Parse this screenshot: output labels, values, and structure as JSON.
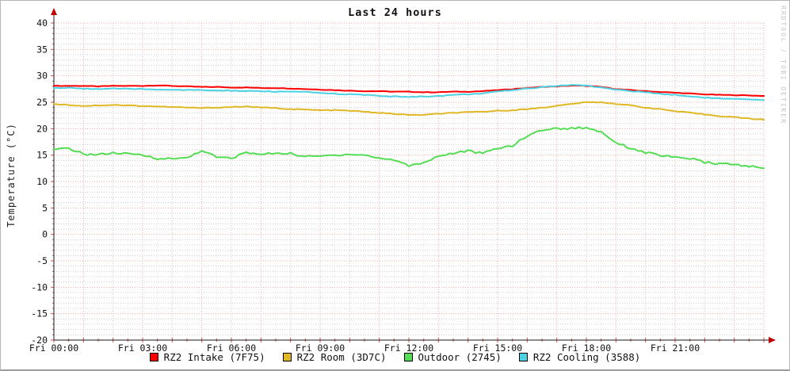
{
  "chart_data": {
    "type": "line",
    "title": "Last 24 hours",
    "ylabel": "Temperature (°C)",
    "watermark": "RRDTOOL / TOBI OETIKER",
    "ylim": [
      -20,
      40
    ],
    "y_major_step": 5,
    "y_minor_step": 1,
    "xlim_hours": [
      0,
      24
    ],
    "x_major_step_hours": 3,
    "x_minor_step_hours": 1,
    "grid": true,
    "legend_position": "bottom",
    "x_tick_hours": [
      0,
      3,
      6,
      9,
      12,
      15,
      18,
      21
    ],
    "x_tick_labels": [
      "Fri 00:00",
      "Fri 03:00",
      "Fri 06:00",
      "Fri 09:00",
      "Fri 12:00",
      "Fri 15:00",
      "Fri 18:00",
      "Fri 21:00"
    ],
    "x_start_hour": 0,
    "x_step_hours": 0.5,
    "series": [
      {
        "name": "RZ2 Intake (7F75)",
        "color": "#ff0000",
        "values": [
          28.1,
          28.1,
          28.1,
          28.0,
          28.1,
          28.1,
          28.1,
          28.2,
          28.1,
          28.0,
          27.9,
          27.9,
          27.8,
          27.8,
          27.7,
          27.7,
          27.6,
          27.5,
          27.4,
          27.3,
          27.2,
          27.1,
          27.1,
          27.0,
          27.0,
          26.9,
          26.9,
          27.0,
          27.0,
          27.1,
          27.3,
          27.5,
          27.7,
          27.9,
          28.0,
          28.15,
          28.1,
          27.9,
          27.5,
          27.3,
          27.1,
          26.95,
          26.8,
          26.65,
          26.5,
          26.4,
          26.35,
          26.3,
          26.2
        ]
      },
      {
        "name": "RZ2 Room (3D7C)",
        "color": "#e0b826",
        "values": [
          24.7,
          24.5,
          24.3,
          24.4,
          24.5,
          24.4,
          24.3,
          24.2,
          24.1,
          24.0,
          23.9,
          24.0,
          24.1,
          24.2,
          24.0,
          23.9,
          23.7,
          23.6,
          23.5,
          23.5,
          23.4,
          23.2,
          23.0,
          22.8,
          22.6,
          22.6,
          22.8,
          23.0,
          23.1,
          23.2,
          23.4,
          23.5,
          23.7,
          24.0,
          24.3,
          24.7,
          25.0,
          25.0,
          24.7,
          24.4,
          24.0,
          23.7,
          23.3,
          23.0,
          22.7,
          22.4,
          22.2,
          21.9,
          21.7
        ]
      },
      {
        "name": "Outdoor (2745)",
        "color": "#54dd54",
        "values": [
          16.0,
          16.3,
          15.2,
          15.1,
          15.4,
          15.2,
          15.0,
          14.4,
          14.3,
          14.5,
          15.9,
          14.6,
          14.4,
          15.5,
          15.1,
          15.4,
          15.3,
          14.7,
          14.8,
          15.0,
          15.2,
          15.0,
          14.4,
          14.1,
          13.0,
          13.6,
          14.8,
          15.4,
          15.8,
          15.3,
          16.3,
          16.8,
          18.6,
          19.8,
          20.0,
          20.1,
          20.2,
          19.4,
          17.4,
          16.3,
          15.5,
          15.0,
          14.5,
          14.4,
          13.6,
          13.4,
          13.2,
          12.9,
          12.5
        ]
      },
      {
        "name": "RZ2 Cooling (3588)",
        "color": "#4cd2e4",
        "values": [
          27.7,
          27.7,
          27.6,
          27.5,
          27.6,
          27.5,
          27.5,
          27.4,
          27.4,
          27.3,
          27.3,
          27.2,
          27.2,
          27.1,
          27.1,
          27.0,
          27.0,
          26.9,
          26.8,
          26.6,
          26.5,
          26.4,
          26.2,
          26.1,
          26.0,
          26.1,
          26.2,
          26.4,
          26.5,
          26.7,
          27.0,
          27.3,
          27.6,
          27.9,
          28.1,
          28.25,
          28.15,
          27.8,
          27.4,
          27.1,
          26.9,
          26.6,
          26.4,
          26.1,
          25.9,
          25.7,
          25.6,
          25.5,
          25.4
        ]
      }
    ],
    "colors": {
      "axis": "#1a1a1a",
      "arrow": "#c00000",
      "tick": "#d05050",
      "major_grid": "#f2a9a9",
      "minor_grid": "#cccccc",
      "faint_grid": "#e7e7e7",
      "watermark_text": "#c4c4c4"
    }
  }
}
